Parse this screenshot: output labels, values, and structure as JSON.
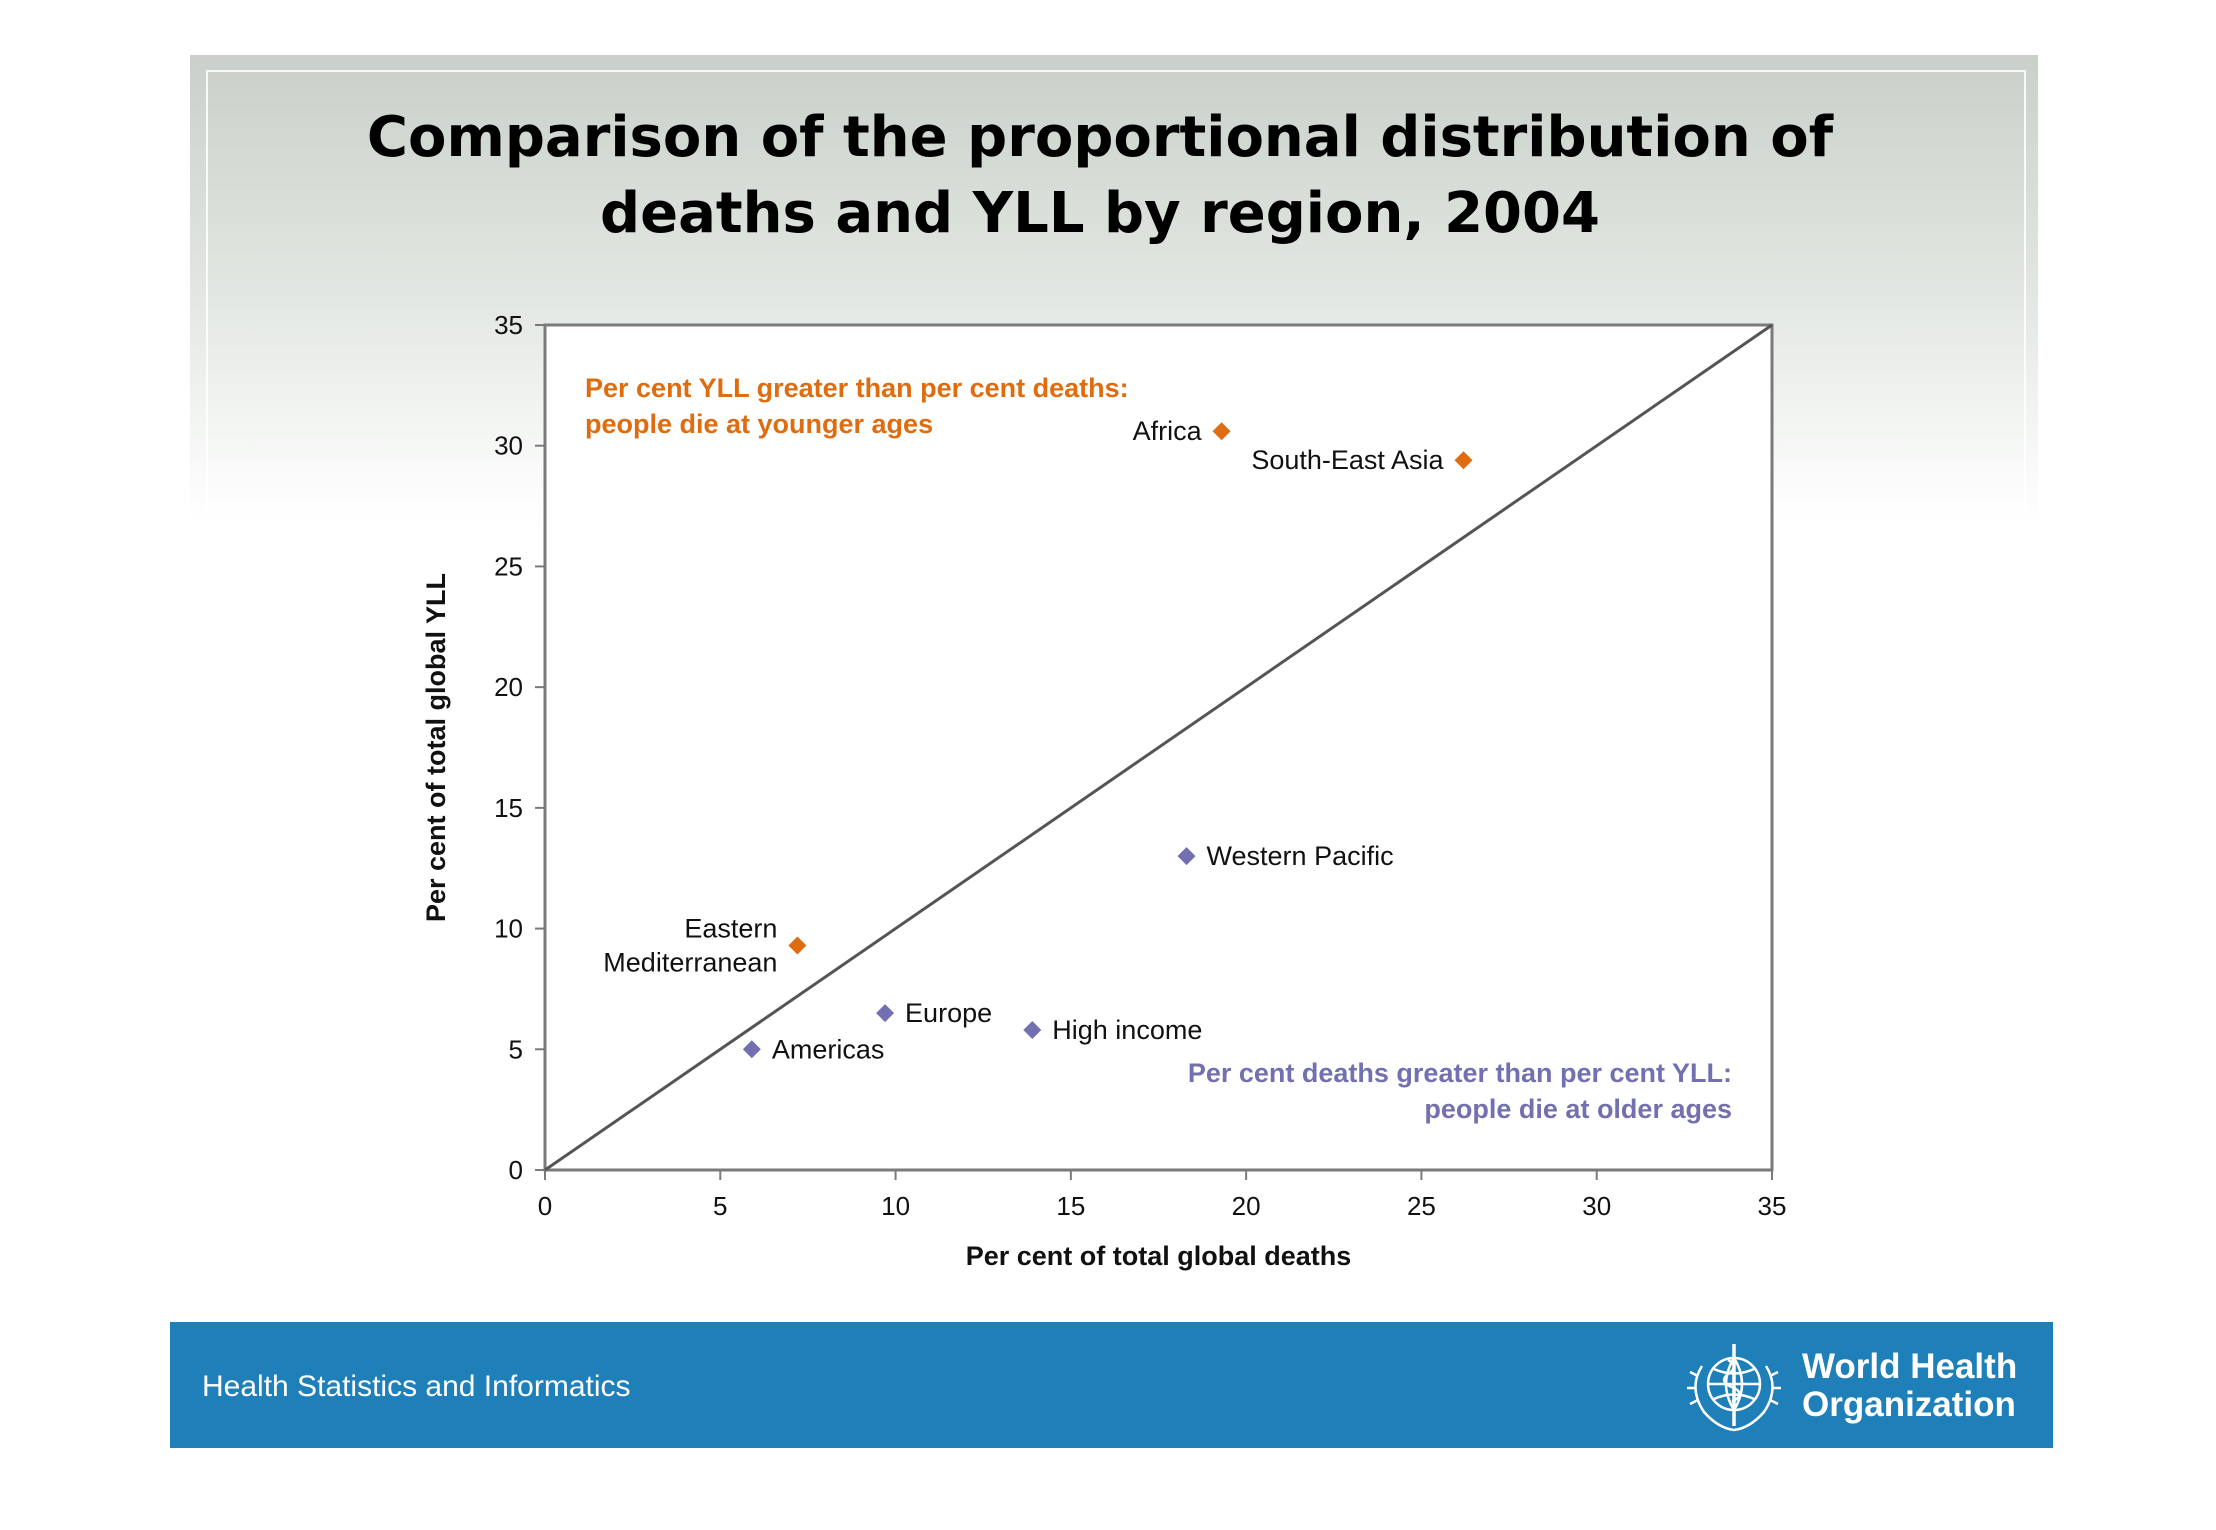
{
  "slide": {
    "title": "Comparison of the proportional distribution of\ndeaths and YLL by region, 2004"
  },
  "chart_data": {
    "type": "scatter",
    "xlabel": "Per cent of total global deaths",
    "ylabel": "Per cent of total global YLL",
    "xlim": [
      0,
      35
    ],
    "ylim": [
      0,
      35
    ],
    "xticks": [
      0,
      5,
      10,
      15,
      20,
      25,
      30,
      35
    ],
    "yticks": [
      0,
      5,
      10,
      15,
      20,
      25,
      30,
      35
    ],
    "grid": false,
    "reference_line": {
      "from": [
        0,
        0
      ],
      "to": [
        35,
        35
      ],
      "color": "#555555"
    },
    "points": [
      {
        "label": "Africa",
        "x": 19.3,
        "y": 30.6,
        "color": "#e06c10",
        "label_side": "left"
      },
      {
        "label": "South-East Asia",
        "x": 26.2,
        "y": 29.4,
        "color": "#e06c10",
        "label_side": "left"
      },
      {
        "label": "Eastern\nMediterranean",
        "x": 7.2,
        "y": 9.3,
        "color": "#e06c10",
        "label_side": "left"
      },
      {
        "label": "Western Pacific",
        "x": 18.3,
        "y": 13.0,
        "color": "#7270b0",
        "label_side": "right"
      },
      {
        "label": "Europe",
        "x": 9.7,
        "y": 6.5,
        "color": "#7270b0",
        "label_side": "right"
      },
      {
        "label": "High income",
        "x": 13.9,
        "y": 5.8,
        "color": "#7270b0",
        "label_side": "right"
      },
      {
        "label": "Americas",
        "x": 5.9,
        "y": 5.0,
        "color": "#7270b0",
        "label_side": "right"
      }
    ],
    "annotations": [
      {
        "text": "Per cent YLL greater than per cent deaths:\npeople die at younger ages",
        "color": "#e06c10",
        "placement": "top-left"
      },
      {
        "text": "Per cent deaths greater than per cent YLL:\npeople die at older ages",
        "color": "#7270b0",
        "placement": "bottom-right"
      }
    ]
  },
  "footer": {
    "label": "Health Statistics and Informatics",
    "org_name": "World Health\nOrganization",
    "logo_icon": "who-emblem-icon",
    "background": "#1f80b9"
  }
}
